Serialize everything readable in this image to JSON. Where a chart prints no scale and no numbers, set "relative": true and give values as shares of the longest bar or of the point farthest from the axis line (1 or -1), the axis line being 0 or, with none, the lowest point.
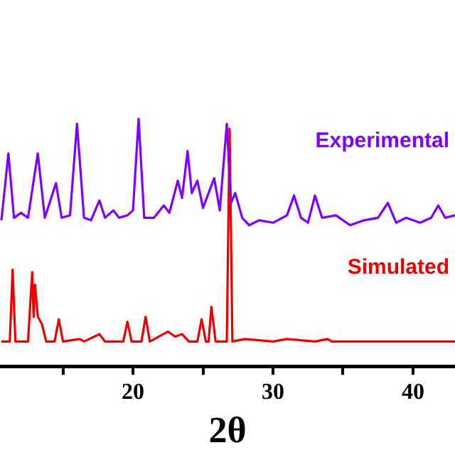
{
  "chart_data": {
    "type": "line",
    "xlabel": "2θ",
    "relative": true,
    "marker": "none",
    "tick_labels": "x",
    "xlim": [
      10.5,
      43
    ],
    "xticks": [
      {
        "value": 15,
        "label": null
      },
      20,
      {
        "value": 25,
        "label": null
      },
      30,
      {
        "value": 35,
        "label": null
      },
      40
    ],
    "series": [
      {
        "name": "Experimental",
        "color": "#8000ff",
        "x": [
          10.6,
          11.1,
          11.5,
          12.0,
          12.5,
          13.2,
          13.7,
          14.5,
          14.9,
          15.5,
          16.0,
          16.5,
          17.0,
          17.6,
          18.0,
          18.6,
          19.0,
          19.6,
          20.0,
          20.4,
          20.8,
          21.5,
          22.2,
          22.6,
          23.2,
          23.5,
          23.9,
          24.2,
          24.6,
          25.0,
          25.8,
          26.2,
          26.7,
          27.0,
          27.3,
          27.8,
          28.3,
          29.0,
          30.0,
          31.0,
          31.5,
          32.0,
          32.5,
          33.0,
          33.5,
          34.5,
          35.5,
          36.5,
          37.5,
          38.2,
          38.8,
          39.5,
          40.5,
          41.3,
          41.8,
          42.3,
          43.0
        ],
        "values": [
          0.59,
          0.86,
          0.6,
          0.62,
          0.6,
          0.86,
          0.6,
          0.74,
          0.6,
          0.61,
          0.98,
          0.6,
          0.59,
          0.67,
          0.6,
          0.63,
          0.6,
          0.61,
          0.63,
          1.0,
          0.6,
          0.6,
          0.65,
          0.62,
          0.75,
          0.68,
          0.87,
          0.7,
          0.75,
          0.64,
          0.76,
          0.63,
          0.98,
          0.66,
          0.7,
          0.6,
          0.57,
          0.59,
          0.58,
          0.61,
          0.69,
          0.6,
          0.58,
          0.69,
          0.6,
          0.61,
          0.57,
          0.59,
          0.6,
          0.66,
          0.58,
          0.6,
          0.58,
          0.6,
          0.65,
          0.6,
          0.61
        ]
      },
      {
        "name": "Simulated",
        "color": "#ee0000",
        "x": [
          10.6,
          11.2,
          11.4,
          11.6,
          12.5,
          12.8,
          12.9,
          13.0,
          13.2,
          13.5,
          13.8,
          14.4,
          14.7,
          15.0,
          16.2,
          16.5,
          17.6,
          18.0,
          19.3,
          19.6,
          19.9,
          20.6,
          20.9,
          21.2,
          22.5,
          23.0,
          23.5,
          24.0,
          24.6,
          24.9,
          25.2,
          25.4,
          25.6,
          25.9,
          26.7,
          26.9,
          27.1,
          28.0,
          30.0,
          31.0,
          33.0,
          33.9,
          34.2,
          37.0,
          40.0,
          43.0
        ],
        "values": [
          0.1,
          0.1,
          0.39,
          0.1,
          0.1,
          0.38,
          0.2,
          0.33,
          0.2,
          0.17,
          0.1,
          0.1,
          0.19,
          0.1,
          0.11,
          0.1,
          0.13,
          0.1,
          0.1,
          0.18,
          0.1,
          0.1,
          0.2,
          0.1,
          0.14,
          0.12,
          0.13,
          0.1,
          0.1,
          0.19,
          0.1,
          0.1,
          0.24,
          0.1,
          0.1,
          0.96,
          0.1,
          0.11,
          0.1,
          0.11,
          0.1,
          0.11,
          0.1,
          0.1,
          0.1,
          0.1
        ]
      }
    ]
  }
}
